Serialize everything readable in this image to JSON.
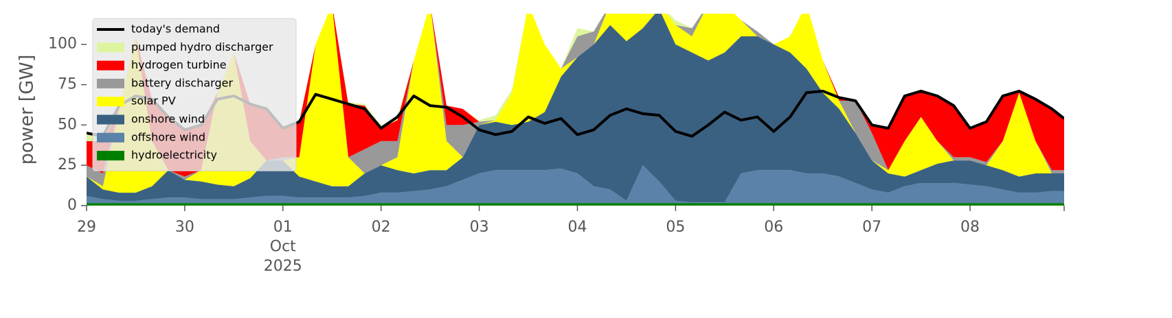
{
  "chart_data": {
    "type": "area",
    "stacked": true,
    "ylabel": "power [GW]",
    "legend": "upper left",
    "x": [
      0,
      4,
      8,
      12,
      16,
      20,
      24,
      28,
      32,
      36,
      40,
      44,
      48,
      52,
      56,
      60,
      64,
      68,
      72,
      76,
      80,
      84,
      88,
      92,
      96,
      100,
      104,
      108,
      112,
      116,
      120,
      124,
      128,
      132,
      136,
      140,
      144,
      148,
      152,
      156,
      160,
      164,
      168,
      172,
      176,
      180,
      184,
      188,
      192,
      196,
      200,
      204,
      208,
      212,
      216,
      220,
      224,
      228,
      232,
      236,
      239
    ],
    "xlim": [
      0,
      239
    ],
    "xticks": [
      {
        "value": 0,
        "label": "29"
      },
      {
        "value": 24,
        "label": "30"
      },
      {
        "value": 48,
        "label": "01\nOct\n2025"
      },
      {
        "value": 72,
        "label": "02"
      },
      {
        "value": 96,
        "label": "03"
      },
      {
        "value": 120,
        "label": "04"
      },
      {
        "value": 144,
        "label": "05"
      },
      {
        "value": 168,
        "label": "06"
      },
      {
        "value": 192,
        "label": "07"
      },
      {
        "value": 216,
        "label": "08"
      }
    ],
    "ylim": [
      0,
      119
    ],
    "yticks": [
      0,
      25,
      50,
      75,
      100
    ],
    "series": [
      {
        "name": "hydroelectricity",
        "color": "#008000",
        "values": [
          1.5,
          1.5,
          1.5,
          1.5,
          1.5,
          1.5,
          1.5,
          1.5,
          1.5,
          1.5,
          1.5,
          1.5,
          1.5,
          1.5,
          1.5,
          1.5,
          1.5,
          1.5,
          1.5,
          1.5,
          1.5,
          1.5,
          1.5,
          1.5,
          1.5,
          1.5,
          1.5,
          1.5,
          1.5,
          1.5,
          1.5,
          1.5,
          1.5,
          1.5,
          1.5,
          1.5,
          1.5,
          1.5,
          1.5,
          1.5,
          1.5,
          1.5,
          1.5,
          1.5,
          1.5,
          1.5,
          1.5,
          1.5,
          1.5,
          1.5,
          1.5,
          1.5,
          1.5,
          1.5,
          1.5,
          1.5,
          1.5,
          1.5,
          1.5,
          1.5,
          1.5
        ]
      },
      {
        "name": "offshore wind",
        "color": "#5b82a8",
        "values": [
          4.5,
          2.5,
          1.5,
          1.5,
          2.5,
          3.5,
          3.5,
          2.5,
          2.5,
          2.5,
          3.5,
          4.5,
          4.5,
          3.5,
          3.5,
          3.5,
          3.5,
          4.5,
          6.5,
          6.5,
          7.5,
          8.5,
          10.5,
          14.5,
          18.5,
          20.5,
          20.5,
          20.5,
          20.5,
          21.5,
          18.5,
          10.5,
          8.5,
          1.5,
          23.5,
          13.5,
          1.5,
          0.5,
          0.5,
          0.5,
          18.5,
          20.5,
          20.5,
          20.5,
          18.5,
          18.5,
          16.5,
          12.5,
          8.5,
          6.5,
          10.5,
          12.5,
          12.5,
          12.5,
          11.5,
          10.5,
          8.5,
          6.5,
          6.5,
          7.5,
          7.5
        ]
      },
      {
        "name": "onshore wind",
        "color": "#3b6182",
        "values": [
          12,
          6,
          5,
          5,
          8,
          17,
          11,
          11,
          9,
          8,
          12,
          22,
          22,
          13,
          10,
          7,
          7,
          14,
          17,
          14,
          11,
          12,
          10,
          14,
          30,
          30,
          28,
          30,
          36,
          57,
          72,
          88,
          102,
          99,
          85,
          107,
          97,
          93,
          88,
          93,
          85,
          83,
          78,
          73,
          65,
          50,
          42,
          31,
          18,
          12,
          6,
          8,
          12,
          14,
          15,
          13,
          12,
          10,
          12,
          11,
          11
        ]
      },
      {
        "name": "solar PV",
        "color": "#ffff00",
        "values": [
          0,
          2,
          52,
          97,
          28,
          0,
          0,
          7,
          57,
          83,
          23,
          0,
          0,
          12,
          85,
          113,
          18,
          0,
          0,
          8,
          70,
          103,
          18,
          0,
          0,
          1,
          20,
          73,
          42,
          5,
          0,
          0,
          13,
          23,
          15,
          3,
          12,
          10,
          35,
          30,
          10,
          0,
          0,
          10,
          40,
          20,
          5,
          0,
          0,
          2,
          22,
          33,
          14,
          0,
          0,
          0,
          18,
          52,
          20,
          0,
          0
        ]
      },
      {
        "name": "battery discharger",
        "color": "#999999",
        "values": [
          7,
          8,
          0,
          0,
          0,
          0,
          2,
          0,
          0,
          0,
          0,
          0,
          2,
          0,
          0,
          0,
          0,
          15,
          15,
          10,
          0,
          0,
          10,
          20,
          2,
          0,
          0,
          0,
          0,
          0,
          13,
          8,
          0,
          0,
          0,
          0,
          0,
          5,
          0,
          0,
          0,
          3,
          0,
          0,
          0,
          0,
          0,
          20,
          17,
          0,
          0,
          0,
          0,
          2,
          2,
          2,
          0,
          0,
          0,
          2,
          2
        ]
      },
      {
        "name": "hydrogen turbine",
        "color": "#ff0000",
        "values": [
          15,
          20,
          0,
          0,
          26,
          33,
          29,
          28,
          0,
          0,
          23,
          32,
          18,
          22,
          0,
          0,
          33,
          27,
          8,
          13,
          0,
          0,
          12,
          10,
          0,
          0,
          0,
          0,
          0,
          0,
          0,
          0,
          0,
          0,
          0,
          0,
          0,
          0,
          0,
          0,
          0,
          0,
          0,
          0,
          0,
          0,
          2,
          0,
          5,
          26,
          28,
          16,
          28,
          32,
          18,
          25,
          28,
          1,
          26,
          38,
          32
        ]
      },
      {
        "name": "pumped hydro discharger",
        "color": "#ddf5a0",
        "values": [
          4,
          3,
          0,
          0,
          0,
          0,
          0,
          0,
          0,
          0,
          0,
          0,
          0,
          1,
          0,
          0,
          1,
          1,
          2,
          2,
          0,
          0,
          0,
          0,
          1,
          3,
          2,
          0,
          0,
          0,
          5,
          0,
          0,
          0,
          0,
          0,
          3,
          0,
          0,
          0,
          0,
          0,
          0,
          0,
          0,
          0,
          0,
          0,
          0,
          0,
          0,
          1,
          0,
          1,
          1,
          0,
          0,
          0,
          1,
          1,
          0
        ]
      },
      {
        "name": "today's demand",
        "color": "#000000",
        "type": "line",
        "values": [
          45,
          43,
          62,
          68,
          66,
          55,
          47,
          50,
          66,
          68,
          63,
          60,
          48,
          52,
          69,
          66,
          63,
          60,
          48,
          55,
          68,
          62,
          61,
          55,
          47,
          44,
          46,
          55,
          51,
          54,
          44,
          47,
          56,
          60,
          57,
          56,
          46,
          43,
          50,
          58,
          53,
          55,
          46,
          55,
          70,
          71,
          67,
          65,
          50,
          48,
          68,
          71,
          68,
          62,
          48,
          52,
          68,
          71,
          66,
          60,
          54
        ]
      }
    ]
  }
}
